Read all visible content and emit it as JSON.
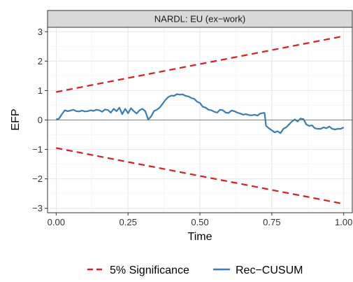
{
  "chart_data": {
    "type": "line",
    "title": "",
    "facet_label": "NARDL: EU (ex−work)",
    "xlabel": "Time",
    "ylabel": "EFP",
    "xlim": [
      -0.03,
      1.03
    ],
    "ylim": [
      -3.15,
      3.15
    ],
    "x_ticks": [
      0,
      0.25,
      0.5,
      0.75,
      1
    ],
    "x_tick_labels": [
      "0.00",
      "0.25",
      "0.50",
      "0.75",
      "1.00"
    ],
    "y_ticks": [
      -3,
      -2,
      -1,
      0,
      1,
      2,
      3
    ],
    "y_tick_labels": [
      "−3",
      "−2",
      "−1",
      "0",
      "1",
      "2",
      "3"
    ],
    "grid": true,
    "zero_line": 0,
    "legend_position": "bottom",
    "series": [
      {
        "name": "5% Significance",
        "color": "#e31a1c",
        "dash": true,
        "x": [
          0,
          1
        ],
        "y": [
          0.95,
          2.85
        ]
      },
      {
        "name": "5% Significance",
        "color": "#e31a1c",
        "dash": true,
        "show_in_legend": false,
        "x": [
          0,
          1
        ],
        "y": [
          -0.95,
          -2.85
        ]
      },
      {
        "name": "Rec−CUSUM",
        "color": "#377eb8",
        "dash": false,
        "x": [
          0.0,
          0.01,
          0.02,
          0.03,
          0.04,
          0.05,
          0.06,
          0.07,
          0.08,
          0.09,
          0.1,
          0.11,
          0.12,
          0.13,
          0.14,
          0.15,
          0.16,
          0.17,
          0.18,
          0.19,
          0.2,
          0.21,
          0.22,
          0.23,
          0.24,
          0.25,
          0.26,
          0.27,
          0.28,
          0.29,
          0.3,
          0.31,
          0.32,
          0.33,
          0.34,
          0.35,
          0.36,
          0.37,
          0.38,
          0.39,
          0.4,
          0.41,
          0.42,
          0.43,
          0.44,
          0.45,
          0.46,
          0.47,
          0.48,
          0.49,
          0.5,
          0.51,
          0.52,
          0.53,
          0.54,
          0.55,
          0.56,
          0.57,
          0.58,
          0.59,
          0.6,
          0.61,
          0.62,
          0.63,
          0.64,
          0.65,
          0.66,
          0.67,
          0.68,
          0.69,
          0.7,
          0.71,
          0.72,
          0.725,
          0.73,
          0.74,
          0.75,
          0.76,
          0.77,
          0.78,
          0.79,
          0.8,
          0.81,
          0.82,
          0.83,
          0.84,
          0.85,
          0.86,
          0.87,
          0.88,
          0.89,
          0.9,
          0.91,
          0.92,
          0.93,
          0.94,
          0.95,
          0.96,
          0.97,
          0.98,
          0.99,
          1.0
        ],
        "y": [
          0.02,
          0.05,
          0.2,
          0.33,
          0.3,
          0.32,
          0.35,
          0.3,
          0.29,
          0.32,
          0.29,
          0.3,
          0.33,
          0.31,
          0.35,
          0.33,
          0.28,
          0.36,
          0.34,
          0.25,
          0.38,
          0.3,
          0.42,
          0.2,
          0.38,
          0.23,
          0.4,
          0.3,
          0.22,
          0.33,
          0.38,
          0.3,
          0.02,
          0.12,
          0.3,
          0.35,
          0.42,
          0.55,
          0.68,
          0.78,
          0.83,
          0.82,
          0.88,
          0.86,
          0.87,
          0.82,
          0.8,
          0.75,
          0.72,
          0.62,
          0.58,
          0.45,
          0.42,
          0.35,
          0.33,
          0.28,
          0.25,
          0.35,
          0.33,
          0.25,
          0.24,
          0.32,
          0.3,
          0.25,
          0.22,
          0.18,
          0.2,
          0.17,
          0.16,
          0.18,
          0.15,
          0.22,
          0.24,
          0.24,
          -0.2,
          -0.28,
          -0.35,
          -0.42,
          -0.38,
          -0.45,
          -0.3,
          -0.25,
          -0.15,
          -0.05,
          0.02,
          -0.05,
          0.05,
          0.03,
          -0.15,
          -0.2,
          -0.18,
          -0.28,
          -0.3,
          -0.3,
          -0.25,
          -0.28,
          -0.22,
          -0.3,
          -0.32,
          -0.3,
          -0.3,
          -0.25
        ]
      }
    ]
  },
  "legend": {
    "significance_label": "5% Significance",
    "cusum_label": "Rec−CUSUM"
  }
}
